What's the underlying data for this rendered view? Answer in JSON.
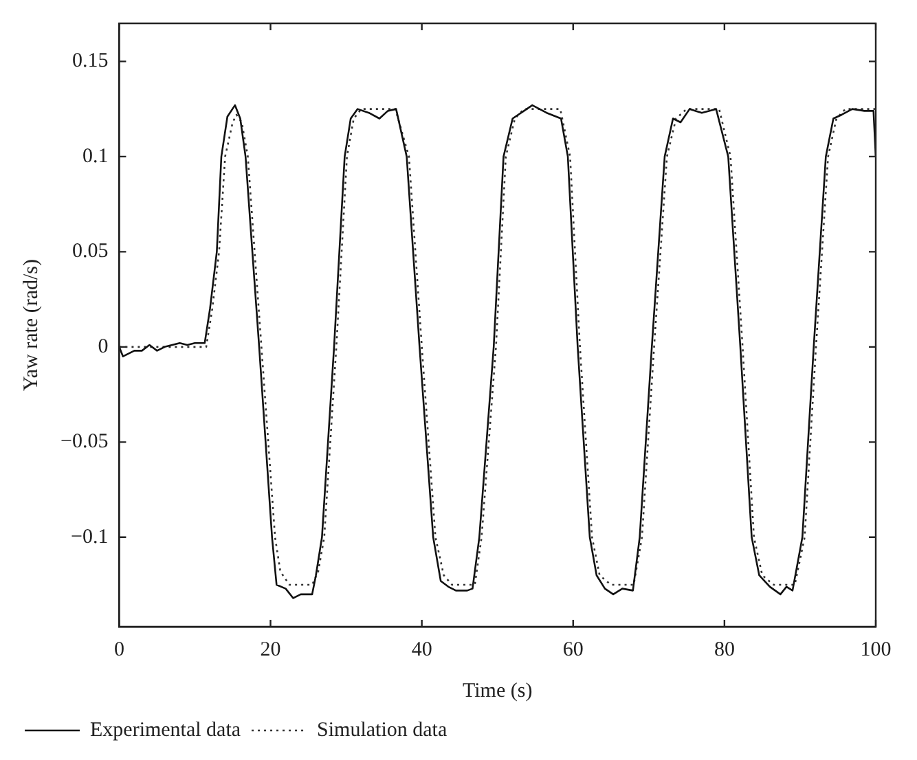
{
  "chart_data": {
    "type": "line",
    "xlabel": "Time (s)",
    "ylabel": "Yaw rate (rad/s)",
    "xlim": [
      0,
      100
    ],
    "xticks": [
      0,
      20,
      40,
      60,
      80,
      100
    ],
    "ylim": [
      -0.147,
      0.17
    ],
    "yticks": [
      {
        "value": -0.1,
        "label": "−0.1"
      },
      {
        "value": -0.05,
        "label": "−0.05"
      },
      0,
      0.05,
      0.1,
      0.15
    ],
    "grid": false,
    "legend": "bottom left",
    "marker": "none",
    "series": [
      {
        "name": "Experimental data",
        "color": "#111111",
        "line_style": "solid",
        "x": [
          0,
          0.5,
          1,
          2,
          3,
          4,
          5,
          6,
          7,
          8,
          9,
          10,
          11.3,
          12,
          12.9,
          13.5,
          14.3,
          15.3,
          16,
          16.7,
          18.5,
          20.2,
          20.8,
          22,
          23,
          24,
          25.5,
          26,
          26.8,
          28.4,
          29.8,
          30.6,
          31.5,
          33,
          34.4,
          35.5,
          36.6,
          38,
          39.7,
          41.5,
          42.5,
          43.5,
          44.5,
          46,
          46.7,
          47.6,
          49.5,
          50.8,
          52,
          53.5,
          54.6,
          56.5,
          58.4,
          59.3,
          60.6,
          62.2,
          63.1,
          64.2,
          65.3,
          66.5,
          67.9,
          68.8,
          70.4,
          72.1,
          73.2,
          74.2,
          75.4,
          77,
          78.9,
          80.5,
          82.1,
          83.6,
          84.6,
          86,
          87.4,
          88.2,
          89,
          90.3,
          91.8,
          93.4,
          94.4,
          95.5,
          96.9,
          98.5,
          99.7,
          100
        ],
        "values": [
          0,
          -0.005,
          -0.004,
          -0.002,
          -0.002,
          0.001,
          -0.002,
          0,
          0.001,
          0.002,
          0.001,
          0.002,
          0.002,
          0.02,
          0.05,
          0.1,
          0.121,
          0.127,
          0.12,
          0.1,
          0,
          -0.1,
          -0.125,
          -0.127,
          -0.132,
          -0.13,
          -0.13,
          -0.12,
          -0.1,
          0,
          0.1,
          0.12,
          0.125,
          0.123,
          0.12,
          0.124,
          0.125,
          0.1,
          0,
          -0.1,
          -0.123,
          -0.126,
          -0.128,
          -0.128,
          -0.127,
          -0.1,
          0,
          0.1,
          0.12,
          0.124,
          0.127,
          0.123,
          0.12,
          0.1,
          0,
          -0.1,
          -0.12,
          -0.127,
          -0.13,
          -0.127,
          -0.128,
          -0.1,
          0,
          0.1,
          0.12,
          0.118,
          0.125,
          0.123,
          0.125,
          0.1,
          0,
          -0.1,
          -0.12,
          -0.126,
          -0.13,
          -0.126,
          -0.128,
          -0.1,
          0,
          0.1,
          0.12,
          0.122,
          0.125,
          0.124,
          0.124,
          0.1
        ]
      },
      {
        "name": "Simulation data",
        "color": "#333333",
        "line_style": "dotted",
        "x": [
          0,
          11.5,
          12.3,
          13.2,
          14,
          15,
          15.5,
          16.2,
          17,
          18.8,
          20.6,
          21.3,
          22.5,
          25.5,
          26.3,
          27.1,
          28.7,
          30.1,
          31,
          32,
          36.5,
          38.3,
          40,
          41.8,
          42.9,
          44,
          47,
          47.9,
          49.8,
          51.1,
          52.3,
          53.5,
          58.3,
          59.6,
          60.9,
          62.5,
          63.5,
          65,
          68,
          69.1,
          70.7,
          72.4,
          73.6,
          75,
          79.3,
          80.8,
          82.4,
          83.9,
          85,
          86.5,
          89.3,
          90.6,
          92.1,
          93.7,
          94.8,
          96,
          100
        ],
        "values": [
          0,
          0,
          0.02,
          0.05,
          0.1,
          0.118,
          0.122,
          0.118,
          0.1,
          0,
          -0.1,
          -0.118,
          -0.125,
          -0.125,
          -0.118,
          -0.1,
          0,
          0.1,
          0.12,
          0.125,
          0.125,
          0.1,
          0,
          -0.1,
          -0.12,
          -0.125,
          -0.125,
          -0.1,
          0,
          0.1,
          0.12,
          0.125,
          0.125,
          0.1,
          0,
          -0.1,
          -0.12,
          -0.125,
          -0.125,
          -0.1,
          0,
          0.1,
          0.12,
          0.125,
          0.125,
          0.1,
          0,
          -0.1,
          -0.12,
          -0.125,
          -0.125,
          -0.1,
          0,
          0.1,
          0.12,
          0.125,
          0.125
        ]
      }
    ]
  }
}
